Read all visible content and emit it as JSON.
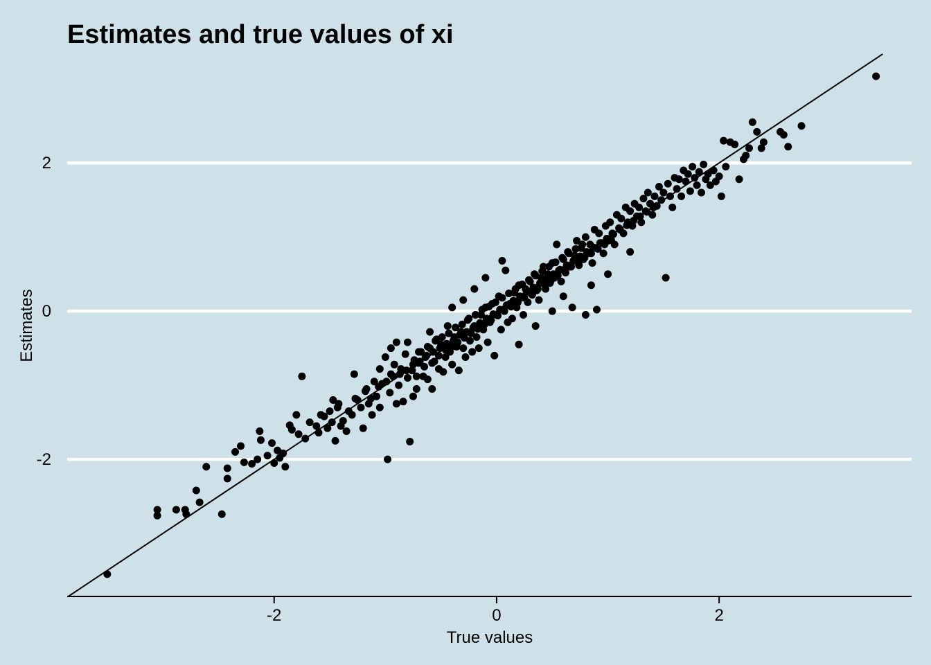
{
  "chart_data": {
    "type": "scatter",
    "title": "Estimates and true values of xi",
    "xlabel": "True values",
    "ylabel": "Estimates",
    "xlim": [
      -3.86,
      3.73
    ],
    "ylim": [
      -3.85,
      3.47
    ],
    "x_ticks": [
      -2,
      0,
      2
    ],
    "x_tick_labels": [
      "-2",
      "0",
      "2"
    ],
    "y_ticks": [
      -2,
      0,
      2
    ],
    "y_tick_labels": [
      "-2",
      "0",
      "2"
    ],
    "grid": "horizontal major lines",
    "reference_line": {
      "type": "identity",
      "slope": 1,
      "intercept": 0
    },
    "colors": {
      "background": "#cfe1e8",
      "points": "#000000",
      "grid": "#ffffff",
      "line": "#000000"
    },
    "points": [
      [
        -3.5,
        -3.55
      ],
      [
        -3.05,
        -2.68
      ],
      [
        -3.05,
        -2.76
      ],
      [
        -2.88,
        -2.68
      ],
      [
        -2.8,
        -2.68
      ],
      [
        -2.79,
        -2.74
      ],
      [
        -2.7,
        -2.42
      ],
      [
        -2.67,
        -2.58
      ],
      [
        -2.61,
        -2.1
      ],
      [
        -2.47,
        -2.74
      ],
      [
        -2.42,
        -2.12
      ],
      [
        -2.42,
        -2.26
      ],
      [
        -2.35,
        -1.9
      ],
      [
        -2.3,
        -1.82
      ],
      [
        -2.27,
        -2.04
      ],
      [
        -2.2,
        -2.06
      ],
      [
        -2.15,
        -2.0
      ],
      [
        -2.13,
        -1.62
      ],
      [
        -2.12,
        -1.74
      ],
      [
        -2.06,
        -1.95
      ],
      [
        -2.02,
        -1.78
      ],
      [
        -2.0,
        -2.05
      ],
      [
        -1.97,
        -1.88
      ],
      [
        -1.95,
        -1.98
      ],
      [
        -1.92,
        -1.92
      ],
      [
        -1.9,
        -2.1
      ],
      [
        -1.86,
        -1.54
      ],
      [
        -1.84,
        -1.6
      ],
      [
        -1.8,
        -1.4
      ],
      [
        -1.78,
        -1.66
      ],
      [
        -1.75,
        -0.88
      ],
      [
        -1.72,
        -1.72
      ],
      [
        -1.68,
        -1.5
      ],
      [
        -1.6,
        -1.64
      ],
      [
        -1.58,
        -1.4
      ],
      [
        -1.52,
        -1.58
      ],
      [
        -1.5,
        -1.35
      ],
      [
        -1.47,
        -1.2
      ],
      [
        -1.45,
        -1.75
      ],
      [
        -1.43,
        -1.3
      ],
      [
        -1.4,
        -1.55
      ],
      [
        -1.38,
        -1.48
      ],
      [
        -1.35,
        -1.62
      ],
      [
        -1.3,
        -1.4
      ],
      [
        -1.28,
        -0.85
      ],
      [
        -1.25,
        -1.2
      ],
      [
        -1.22,
        -1.3
      ],
      [
        -1.2,
        -1.58
      ],
      [
        -1.17,
        -1.05
      ],
      [
        -1.15,
        -1.25
      ],
      [
        -1.12,
        -1.4
      ],
      [
        -1.1,
        -0.95
      ],
      [
        -1.08,
        -1.15
      ],
      [
        -1.05,
        -1.3
      ],
      [
        -1.03,
        -0.98
      ],
      [
        -1.0,
        -0.62
      ],
      [
        -0.98,
        -2.0
      ],
      [
        -0.96,
        -1.1
      ],
      [
        -0.95,
        -0.85
      ],
      [
        -0.92,
        -0.72
      ],
      [
        -0.9,
        -0.42
      ],
      [
        -0.88,
        -1.0
      ],
      [
        -0.86,
        -0.78
      ],
      [
        -0.84,
        -1.22
      ],
      [
        -0.82,
        -0.58
      ],
      [
        -0.8,
        -0.9
      ],
      [
        -0.78,
        -1.76
      ],
      [
        -0.76,
        -0.8
      ],
      [
        -0.74,
        -0.66
      ],
      [
        -0.72,
        -1.05
      ],
      [
        -0.7,
        -0.7
      ],
      [
        -0.68,
        -0.55
      ],
      [
        -0.66,
        -0.88
      ],
      [
        -0.64,
        -0.62
      ],
      [
        -0.62,
        -0.92
      ],
      [
        -0.6,
        -0.5
      ],
      [
        -0.58,
        -1.05
      ],
      [
        -0.56,
        -0.68
      ],
      [
        -0.54,
        -0.38
      ],
      [
        -0.52,
        -0.78
      ],
      [
        -0.5,
        -0.45
      ],
      [
        -0.48,
        -0.82
      ],
      [
        -0.46,
        -0.62
      ],
      [
        -0.44,
        -0.2
      ],
      [
        -0.42,
        -0.55
      ],
      [
        -0.4,
        -0.72
      ],
      [
        -0.38,
        -0.35
      ],
      [
        -0.36,
        -0.48
      ],
      [
        -0.34,
        -0.8
      ],
      [
        -0.32,
        -0.28
      ],
      [
        -0.3,
        -0.5
      ],
      [
        -0.28,
        -0.62
      ],
      [
        -0.26,
        -0.12
      ],
      [
        -0.24,
        -0.4
      ],
      [
        -0.22,
        -0.55
      ],
      [
        -0.2,
        -0.2
      ],
      [
        -0.18,
        -0.35
      ],
      [
        -0.16,
        -0.5
      ],
      [
        -0.14,
        -0.05
      ],
      [
        -0.12,
        -0.25
      ],
      [
        -0.1,
        0.05
      ],
      [
        -0.08,
        -0.42
      ],
      [
        -0.06,
        -0.15
      ],
      [
        -0.04,
        0.1
      ],
      [
        -0.02,
        -0.6
      ],
      [
        0.0,
        -0.05
      ],
      [
        0.02,
        0.2
      ],
      [
        0.04,
        -0.25
      ],
      [
        0.06,
        0.02
      ],
      [
        0.08,
        0.55
      ],
      [
        0.1,
        -0.15
      ],
      [
        0.12,
        0.1
      ],
      [
        0.14,
        -0.1
      ],
      [
        0.16,
        0.25
      ],
      [
        0.18,
        0.05
      ],
      [
        0.2,
        0.35
      ],
      [
        0.22,
        0.18
      ],
      [
        0.24,
        -0.05
      ],
      [
        0.26,
        0.3
      ],
      [
        0.28,
        0.12
      ],
      [
        0.3,
        0.4
      ],
      [
        0.32,
        0.22
      ],
      [
        0.34,
        0.5
      ],
      [
        0.36,
        0.28
      ],
      [
        0.38,
        0.15
      ],
      [
        0.4,
        0.45
      ],
      [
        0.42,
        0.6
      ],
      [
        0.44,
        0.3
      ],
      [
        0.46,
        0.5
      ],
      [
        0.48,
        0.38
      ],
      [
        0.5,
        0.65
      ],
      [
        0.52,
        0.45
      ],
      [
        0.54,
        0.9
      ],
      [
        0.56,
        0.55
      ],
      [
        0.58,
        0.4
      ],
      [
        0.6,
        0.7
      ],
      [
        0.62,
        0.52
      ],
      [
        0.64,
        0.8
      ],
      [
        0.66,
        0.6
      ],
      [
        0.68,
        0.05
      ],
      [
        0.7,
        0.75
      ],
      [
        0.72,
        0.95
      ],
      [
        0.74,
        0.62
      ],
      [
        0.76,
        0.85
      ],
      [
        0.78,
        0.7
      ],
      [
        0.8,
        1.0
      ],
      [
        0.82,
        0.78
      ],
      [
        0.84,
        0.9
      ],
      [
        0.86,
        0.65
      ],
      [
        0.88,
        1.1
      ],
      [
        0.9,
        0.85
      ],
      [
        0.92,
        1.05
      ],
      [
        0.94,
        0.92
      ],
      [
        0.96,
        0.78
      ],
      [
        0.98,
        1.15
      ],
      [
        1.0,
        0.95
      ],
      [
        1.02,
        1.2
      ],
      [
        1.04,
        1.05
      ],
      [
        1.06,
        0.9
      ],
      [
        1.08,
        1.3
      ],
      [
        1.1,
        1.12
      ],
      [
        1.12,
        1.25
      ],
      [
        1.14,
        1.05
      ],
      [
        1.16,
        1.4
      ],
      [
        1.18,
        1.2
      ],
      [
        1.2,
        1.35
      ],
      [
        1.22,
        1.15
      ],
      [
        1.24,
        1.45
      ],
      [
        1.26,
        1.28
      ],
      [
        1.28,
        1.4
      ],
      [
        1.3,
        1.2
      ],
      [
        1.32,
        1.52
      ],
      [
        1.34,
        1.35
      ],
      [
        1.36,
        1.6
      ],
      [
        1.38,
        1.45
      ],
      [
        1.4,
        1.3
      ],
      [
        1.42,
        1.55
      ],
      [
        1.44,
        1.42
      ],
      [
        1.46,
        1.68
      ],
      [
        1.48,
        1.5
      ],
      [
        1.5,
        1.6
      ],
      [
        1.52,
        0.45
      ],
      [
        1.54,
        1.72
      ],
      [
        1.56,
        1.55
      ],
      [
        1.58,
        1.4
      ],
      [
        1.6,
        1.8
      ],
      [
        1.62,
        1.65
      ],
      [
        1.64,
        1.78
      ],
      [
        1.66,
        1.55
      ],
      [
        1.68,
        1.9
      ],
      [
        1.7,
        1.75
      ],
      [
        1.72,
        1.85
      ],
      [
        1.74,
        1.62
      ],
      [
        1.76,
        1.95
      ],
      [
        1.78,
        1.8
      ],
      [
        1.8,
        1.7
      ],
      [
        1.82,
        1.88
      ],
      [
        1.84,
        1.6
      ],
      [
        1.86,
        1.98
      ],
      [
        1.88,
        1.78
      ],
      [
        1.9,
        1.85
      ],
      [
        1.92,
        1.7
      ],
      [
        1.95,
        1.9
      ],
      [
        1.97,
        1.75
      ],
      [
        2.0,
        1.82
      ],
      [
        2.02,
        1.55
      ],
      [
        2.04,
        2.3
      ],
      [
        2.06,
        1.95
      ],
      [
        2.1,
        2.28
      ],
      [
        2.14,
        2.25
      ],
      [
        2.18,
        1.78
      ],
      [
        2.22,
        2.05
      ],
      [
        2.24,
        2.1
      ],
      [
        2.27,
        2.2
      ],
      [
        2.3,
        2.55
      ],
      [
        2.34,
        2.42
      ],
      [
        2.38,
        2.2
      ],
      [
        2.4,
        2.28
      ],
      [
        2.55,
        2.42
      ],
      [
        2.58,
        2.38
      ],
      [
        2.62,
        2.22
      ],
      [
        2.74,
        2.5
      ],
      [
        3.41,
        3.17
      ],
      [
        -1.62,
        -1.55
      ],
      [
        -1.55,
        -1.42
      ],
      [
        -1.48,
        -1.5
      ],
      [
        -1.42,
        -1.25
      ],
      [
        -1.33,
        -1.35
      ],
      [
        -1.27,
        -1.18
      ],
      [
        -1.18,
        -1.08
      ],
      [
        -1.13,
        -1.18
      ],
      [
        -1.06,
        -1.02
      ],
      [
        -0.99,
        -0.95
      ],
      [
        -0.93,
        -0.88
      ],
      [
        -0.87,
        -0.85
      ],
      [
        -0.81,
        -0.8
      ],
      [
        -0.75,
        -0.72
      ],
      [
        -0.69,
        -0.68
      ],
      [
        -0.63,
        -0.6
      ],
      [
        -0.57,
        -0.55
      ],
      [
        -0.51,
        -0.5
      ],
      [
        -0.45,
        -0.44
      ],
      [
        -0.39,
        -0.4
      ],
      [
        -0.33,
        -0.32
      ],
      [
        -0.27,
        -0.28
      ],
      [
        -0.21,
        -0.22
      ],
      [
        -0.15,
        -0.16
      ],
      [
        -0.09,
        -0.1
      ],
      [
        -0.03,
        -0.04
      ],
      [
        0.03,
        0.02
      ],
      [
        0.09,
        0.08
      ],
      [
        0.15,
        0.14
      ],
      [
        0.21,
        0.2
      ],
      [
        0.27,
        0.26
      ],
      [
        0.33,
        0.32
      ],
      [
        0.39,
        0.38
      ],
      [
        0.45,
        0.44
      ],
      [
        0.51,
        0.5
      ],
      [
        0.57,
        0.56
      ],
      [
        0.63,
        0.62
      ],
      [
        0.69,
        0.68
      ],
      [
        0.75,
        0.74
      ],
      [
        0.81,
        0.8
      ],
      [
        0.87,
        0.86
      ],
      [
        0.93,
        0.92
      ],
      [
        0.99,
        0.98
      ],
      [
        1.05,
        1.04
      ],
      [
        1.11,
        1.1
      ],
      [
        1.17,
        1.16
      ],
      [
        1.23,
        1.22
      ],
      [
        1.29,
        1.28
      ],
      [
        1.35,
        1.34
      ],
      [
        1.41,
        1.4
      ],
      [
        -0.72,
        -0.88
      ],
      [
        -0.65,
        -0.75
      ],
      [
        -0.58,
        -0.7
      ],
      [
        -0.52,
        -0.6
      ],
      [
        -0.46,
        -0.52
      ],
      [
        -0.4,
        -0.48
      ],
      [
        -0.35,
        -0.42
      ],
      [
        -0.29,
        -0.36
      ],
      [
        -0.23,
        -0.3
      ],
      [
        -0.17,
        -0.24
      ],
      [
        -0.11,
        -0.18
      ],
      [
        -0.05,
        -0.12
      ],
      [
        0.01,
        -0.06
      ],
      [
        0.07,
        0.0
      ],
      [
        0.13,
        0.06
      ],
      [
        0.19,
        0.12
      ],
      [
        0.25,
        0.18
      ],
      [
        0.31,
        0.24
      ],
      [
        0.37,
        0.3
      ],
      [
        0.43,
        0.36
      ],
      [
        0.49,
        0.42
      ],
      [
        0.55,
        0.48
      ],
      [
        0.61,
        0.54
      ],
      [
        0.67,
        0.6
      ],
      [
        0.73,
        0.66
      ],
      [
        0.79,
        0.72
      ],
      [
        0.85,
        0.78
      ],
      [
        0.91,
        0.84
      ],
      [
        0.97,
        0.9
      ],
      [
        1.03,
        0.96
      ],
      [
        -0.7,
        -0.55
      ],
      [
        -0.62,
        -0.48
      ],
      [
        -0.55,
        -0.4
      ],
      [
        -0.49,
        -0.35
      ],
      [
        -0.43,
        -0.3
      ],
      [
        -0.37,
        -0.22
      ],
      [
        -0.31,
        -0.18
      ],
      [
        -0.25,
        -0.1
      ],
      [
        -0.19,
        -0.05
      ],
      [
        -0.13,
        0.02
      ],
      [
        -0.07,
        0.06
      ],
      [
        -0.01,
        0.12
      ],
      [
        0.05,
        0.18
      ],
      [
        0.11,
        0.24
      ],
      [
        0.17,
        0.3
      ],
      [
        0.23,
        0.36
      ],
      [
        0.29,
        0.42
      ],
      [
        0.35,
        0.48
      ],
      [
        0.41,
        0.54
      ],
      [
        0.47,
        0.6
      ],
      [
        0.53,
        0.66
      ],
      [
        0.59,
        0.72
      ],
      [
        0.65,
        0.78
      ],
      [
        0.71,
        0.84
      ],
      [
        0.77,
        0.9
      ],
      [
        -0.3,
        0.15
      ],
      [
        -0.2,
        0.3
      ],
      [
        -0.1,
        0.45
      ],
      [
        0.05,
        0.68
      ],
      [
        -0.4,
        0.05
      ],
      [
        0.2,
        -0.45
      ],
      [
        0.35,
        -0.2
      ],
      [
        0.5,
        0.0
      ],
      [
        0.6,
        0.2
      ],
      [
        0.85,
        0.35
      ],
      [
        1.0,
        0.5
      ],
      [
        1.2,
        0.8
      ],
      [
        0.9,
        0.02
      ],
      [
        0.8,
        -0.05
      ],
      [
        -0.6,
        -0.28
      ],
      [
        -0.8,
        -0.42
      ],
      [
        -0.95,
        -0.5
      ],
      [
        -1.05,
        -0.78
      ],
      [
        -0.9,
        -1.25
      ],
      [
        -0.75,
        -1.15
      ]
    ]
  }
}
